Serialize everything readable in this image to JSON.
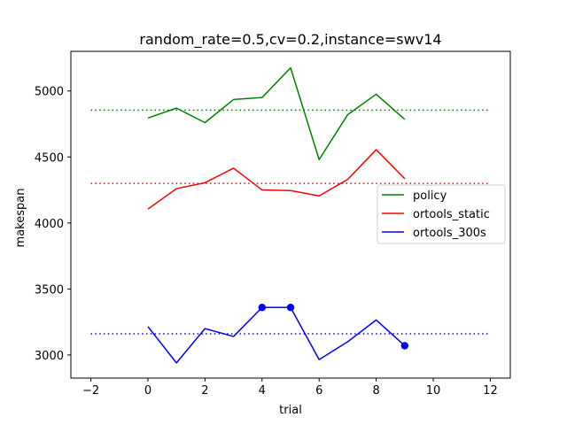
{
  "chart_data": {
    "type": "line",
    "title": "random_rate=0.5,cv=0.2,instance=swv14",
    "xlabel": "trial",
    "ylabel": "makespan",
    "xlim": [
      -2.7,
      12.7
    ],
    "ylim": [
      2825,
      5300
    ],
    "xticks": [
      -2,
      0,
      2,
      4,
      6,
      8,
      10,
      12
    ],
    "xtick_labels": [
      "−2",
      "0",
      "2",
      "4",
      "6",
      "8",
      "10",
      "12"
    ],
    "yticks": [
      3000,
      3500,
      4000,
      4500,
      5000
    ],
    "ytick_labels": [
      "3000",
      "3500",
      "4000",
      "4500",
      "5000"
    ],
    "grid": false,
    "legend_position": "center-right",
    "x": [
      0,
      1,
      2,
      3,
      4,
      5,
      6,
      7,
      8,
      9
    ],
    "series": [
      {
        "name": "policy",
        "color": "#008000",
        "values": [
          4795,
          4870,
          4760,
          4935,
          4950,
          5175,
          4480,
          4820,
          4975,
          4785
        ],
        "mean": 4855,
        "mean_x_range": [
          -2,
          12
        ]
      },
      {
        "name": "ortools_static",
        "color": "#ff0000",
        "values": [
          4105,
          4260,
          4305,
          4415,
          4250,
          4245,
          4205,
          4330,
          4555,
          4335
        ],
        "mean": 4300,
        "mean_x_range": [
          -2,
          12
        ]
      },
      {
        "name": "ortools_300s",
        "color": "#0000ff",
        "values": [
          3215,
          2940,
          3200,
          3140,
          3360,
          3360,
          2965,
          3100,
          3265,
          3070
        ],
        "mean": 3160,
        "mean_x_range": [
          -2,
          12
        ],
        "markers": [
          {
            "x": 4,
            "y": 3360
          },
          {
            "x": 5,
            "y": 3360
          },
          {
            "x": 9,
            "y": 3070
          }
        ]
      }
    ]
  }
}
